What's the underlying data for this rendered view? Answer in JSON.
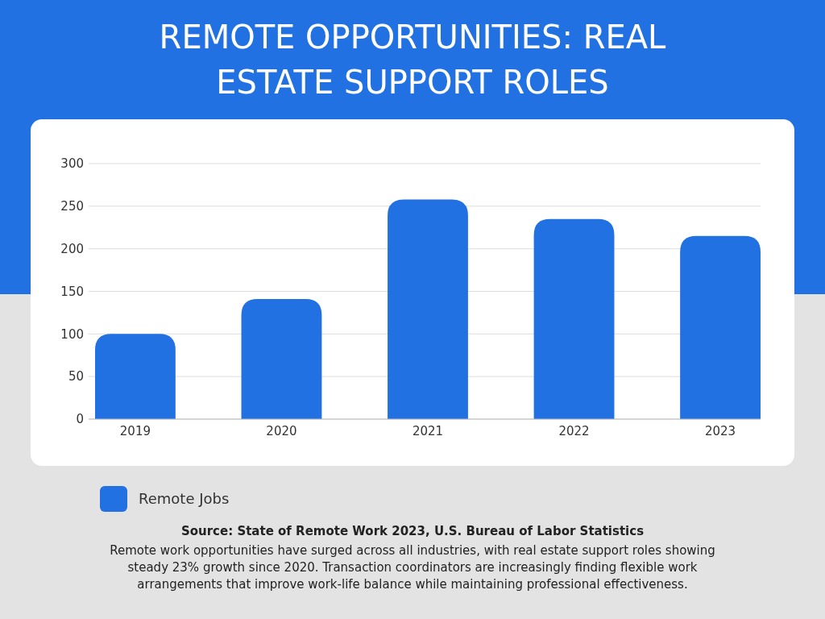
{
  "chart_data": {
    "type": "bar",
    "title": "REMOTE OPPORTUNITIES: REAL ESTATE SUPPORT ROLES",
    "categories": [
      "2019",
      "2020",
      "2021",
      "2022",
      "2023"
    ],
    "series": [
      {
        "name": "Remote Jobs",
        "color": "#2271e2",
        "values": [
          100,
          141,
          258,
          235,
          215
        ]
      }
    ],
    "ylim": [
      0,
      300
    ],
    "yticks": [
      0,
      50,
      100,
      150,
      200,
      250,
      300
    ],
    "grid": "y",
    "legend": "bottom",
    "annotations": [
      "Source: State of Remote Work 2023, U.S. Bureau of Labor Statistics",
      "Remote work opportunities have surged across all industries, with real estate support roles showing steady 23% growth since 2020. Transaction coordinators are increasingly finding flexible work arrangements that improve work-life balance while maintaining professional effectiveness."
    ]
  }
}
